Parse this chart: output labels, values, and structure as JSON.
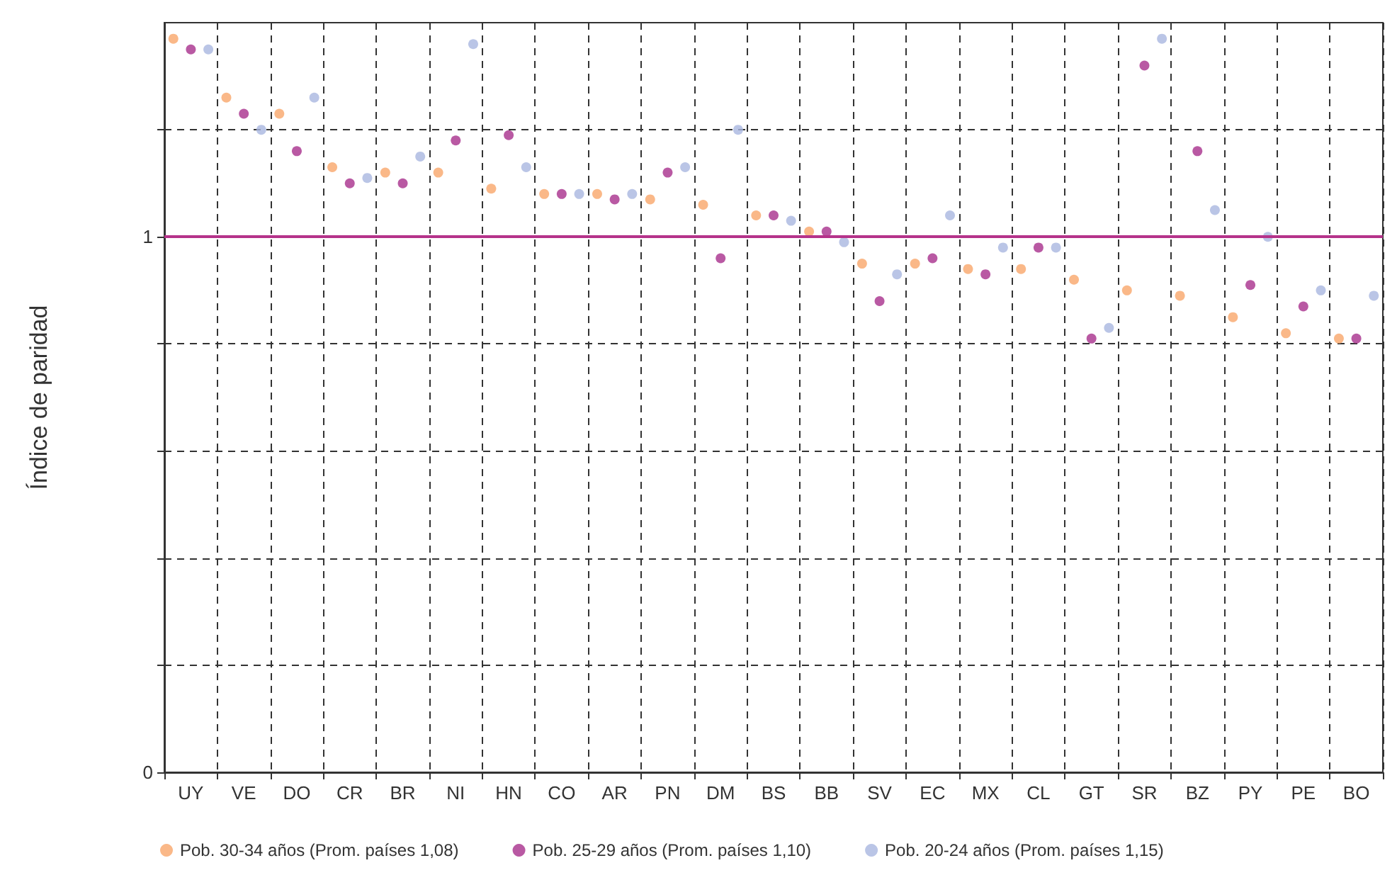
{
  "chart_data": {
    "type": "scatter",
    "ylabel": "Índice de paridad",
    "categories": [
      "UY",
      "VE",
      "DO",
      "CR",
      "BR",
      "NI",
      "HN",
      "CO",
      "AR",
      "PN",
      "DM",
      "BS",
      "BB",
      "SV",
      "EC",
      "MX",
      "CL",
      "GT",
      "SR",
      "BZ",
      "PY",
      "PE",
      "BO"
    ],
    "series": [
      {
        "name": "Pob. 30-34 años (Prom. países 1,08)",
        "color": "#f9a66a",
        "values": [
          1.37,
          1.26,
          1.23,
          1.13,
          1.12,
          1.12,
          1.09,
          1.08,
          1.08,
          1.07,
          1.06,
          1.04,
          1.01,
          0.95,
          0.95,
          0.94,
          0.94,
          0.92,
          0.9,
          0.89,
          0.85,
          0.82,
          0.81
        ]
      },
      {
        "name": "Pob. 25-29 años (Prom. países 1,10)",
        "color": "#a8308c",
        "values": [
          1.35,
          1.23,
          1.16,
          1.1,
          1.1,
          1.18,
          1.19,
          1.08,
          1.07,
          1.12,
          0.96,
          1.04,
          1.01,
          0.88,
          0.96,
          0.93,
          0.98,
          0.81,
          1.32,
          1.16,
          0.91,
          0.87,
          0.81
        ]
      },
      {
        "name": "Pob. 20-24 años (Prom. países 1,15)",
        "color": "#a9b7e0",
        "values": [
          1.35,
          1.2,
          1.26,
          1.11,
          1.15,
          1.36,
          1.13,
          1.08,
          1.08,
          1.13,
          1.2,
          1.03,
          0.99,
          0.93,
          1.04,
          0.98,
          0.98,
          0.83,
          1.37,
          1.05,
          1.0,
          0.9,
          0.89
        ]
      }
    ],
    "ylim": [
      0,
      1.4
    ],
    "yticks": [
      0,
      {
        "value": 0.2,
        "label": null
      },
      {
        "value": 0.4,
        "label": null
      },
      {
        "value": 0.6,
        "label": null
      },
      {
        "value": 0.8,
        "label": null
      },
      1,
      {
        "value": 1.2,
        "label": null
      }
    ],
    "ref_lines": [
      {
        "axis": "y",
        "value": 1,
        "color": "#b5338a"
      }
    ],
    "grid": true,
    "legend": "bottom",
    "marker": "circle"
  }
}
